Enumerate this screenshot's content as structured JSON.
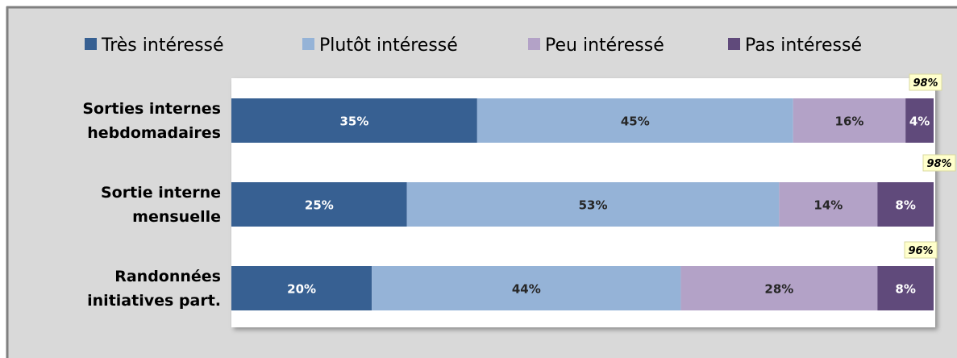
{
  "chart_data": {
    "type": "stacked-bar-horizontal",
    "categories": [
      "Sorties internes\nhebdomadaires",
      "Sortie interne\nmensuelle",
      "Randonnées\ninitiatives part."
    ],
    "series": [
      {
        "name": "Très intéressé",
        "color": "#376092",
        "label_color": "#ffffff",
        "values": [
          35,
          25,
          20
        ],
        "value_labels": [
          "35%",
          "25%",
          "20%"
        ]
      },
      {
        "name": "Plutôt intéressé",
        "color": "#95b3d7",
        "label_color": "#262626",
        "values": [
          45,
          53,
          44
        ],
        "value_labels": [
          "45%",
          "53%",
          "44%"
        ]
      },
      {
        "name": "Peu intéressé",
        "color": "#b3a2c7",
        "label_color": "#262626",
        "values": [
          16,
          14,
          28
        ],
        "value_labels": [
          "16%",
          "14%",
          "28%"
        ]
      },
      {
        "name": "Pas intéressé",
        "color": "#604a7b",
        "label_color": "#ffffff",
        "values": [
          4,
          8,
          8
        ],
        "value_labels": [
          "4%",
          "8%",
          "8%"
        ]
      }
    ],
    "annotations": [
      "98%",
      "98%",
      "96%"
    ],
    "xlim": [
      0,
      100
    ],
    "legend": "top"
  }
}
